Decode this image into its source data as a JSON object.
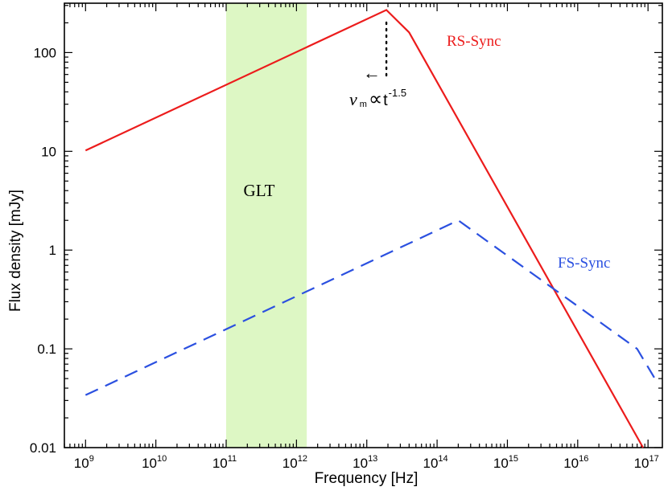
{
  "chart_data": {
    "type": "line",
    "xscale": "log",
    "yscale": "log",
    "xlim": [
      500000000.0,
      1.6e+17
    ],
    "ylim": [
      0.01,
      316
    ],
    "xlabel": "Frequency [Hz]",
    "ylabel": "Flux density [mJy]",
    "xticks": [
      {
        "exp": 9,
        "base": "10",
        "sup": "9"
      },
      {
        "exp": 10,
        "base": "10",
        "sup": "10"
      },
      {
        "exp": 11,
        "base": "10",
        "sup": "11"
      },
      {
        "exp": 12,
        "base": "10",
        "sup": "12"
      },
      {
        "exp": 13,
        "base": "10",
        "sup": "13"
      },
      {
        "exp": 14,
        "base": "10",
        "sup": "14"
      },
      {
        "exp": 15,
        "base": "10",
        "sup": "15"
      },
      {
        "exp": 16,
        "base": "10",
        "sup": "16"
      },
      {
        "exp": 17,
        "base": "10",
        "sup": "17"
      }
    ],
    "yticks": [
      {
        "value": 0.01,
        "label": "0.01"
      },
      {
        "value": 0.1,
        "label": "0.1"
      },
      {
        "value": 1,
        "label": "1"
      },
      {
        "value": 10,
        "label": "10"
      },
      {
        "value": 100,
        "label": "100"
      }
    ],
    "band": {
      "label": "GLT",
      "x_range": [
        100000000000.0,
        1400000000000.0
      ],
      "color": "#ddf7c4"
    },
    "series": [
      {
        "name": "RS-Sync",
        "color": "#ec1c1c",
        "style": "solid",
        "points": [
          [
            1000000000.0,
            10.2
          ],
          [
            19000000000000.0,
            270
          ],
          [
            40000000000000.0,
            160
          ],
          [
            8.5e+16,
            0.01
          ]
        ]
      },
      {
        "name": "FS-Sync",
        "color": "#2b50e0",
        "style": "dashed",
        "points": [
          [
            1000000000.0,
            0.034
          ],
          [
            200000000000000.0,
            2.0
          ],
          [
            7e+16,
            0.1
          ],
          [
            1.25e+17,
            0.05
          ]
        ]
      }
    ],
    "annotations": {
      "break_frequency": 19000000000000.0,
      "arrow": "←",
      "nu_symbol": "ν",
      "nu_sub": "m",
      "propto": "∝",
      "t_text": "t",
      "t_exp": "-1.5"
    },
    "grid": false,
    "legend": "none"
  }
}
